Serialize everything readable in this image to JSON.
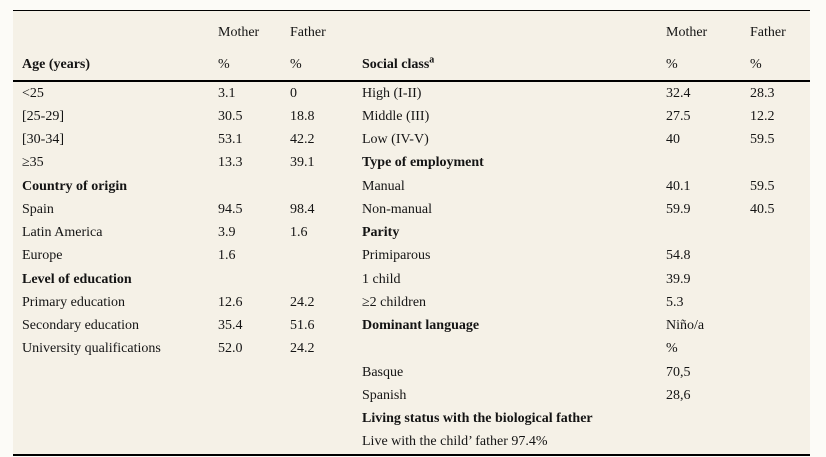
{
  "table": {
    "background_color": "#f5f1e7",
    "page_background": "#fcfbf7",
    "line_color": "#000000",
    "text_color": "#141414",
    "column_names": [
      "label-left",
      "mother-left",
      "father-left",
      "label-right",
      "mother-right",
      "father-right"
    ],
    "header": {
      "row1": [
        "",
        "Mother",
        "Father",
        "",
        "Mother",
        "Father"
      ],
      "age_label": "Age (years)",
      "percent": "%",
      "social_class_label": "Social class",
      "social_class_superscript": "a"
    },
    "rows": [
      {
        "cells": [
          "<25",
          "3.1",
          "0",
          "High (I-II)",
          "32.4",
          "28.3"
        ],
        "bold": []
      },
      {
        "cells": [
          "[25-29]",
          "30.5",
          "18.8",
          "Middle (III)",
          "27.5",
          "12.2"
        ],
        "bold": []
      },
      {
        "cells": [
          "[30-34]",
          "53.1",
          "42.2",
          "Low (IV-V)",
          "40",
          "59.5"
        ],
        "bold": []
      },
      {
        "cells": [
          "≥35",
          "13.3",
          "39.1",
          "Type of employment",
          "",
          ""
        ],
        "bold": [
          3
        ]
      },
      {
        "cells": [
          "Country of origin",
          "",
          "",
          "Manual",
          "40.1",
          "59.5"
        ],
        "bold": [
          0
        ]
      },
      {
        "cells": [
          "Spain",
          "94.5",
          "98.4",
          "Non-manual",
          "59.9",
          "40.5"
        ],
        "bold": []
      },
      {
        "cells": [
          "Latin America",
          "3.9",
          "1.6",
          "Parity",
          "",
          ""
        ],
        "bold": [
          3
        ]
      },
      {
        "cells": [
          "Europe",
          "1.6",
          "",
          "Primiparous",
          "54.8",
          ""
        ],
        "bold": []
      },
      {
        "cells": [
          "Level of education",
          "",
          "",
          "1 child",
          "39.9",
          ""
        ],
        "bold": [
          0
        ]
      },
      {
        "cells": [
          "Primary education",
          "12.6",
          "24.2",
          "≥2 children",
          "5.3",
          ""
        ],
        "bold": []
      },
      {
        "cells": [
          "Secondary education",
          "35.4",
          "51.6",
          "Dominant language",
          "Niño/a",
          ""
        ],
        "bold": [
          3
        ]
      },
      {
        "cells": [
          "University qualifications",
          "52.0",
          "24.2",
          "",
          "%",
          ""
        ],
        "bold": []
      },
      {
        "cells": [
          "",
          "",
          "",
          "Basque",
          "70,5",
          ""
        ],
        "bold": []
      },
      {
        "cells": [
          "",
          "",
          "",
          "Spanish",
          "28,6",
          ""
        ],
        "bold": []
      },
      {
        "cells": [
          "",
          "",
          "",
          "Living status with the biological father",
          "",
          ""
        ],
        "bold": [
          3
        ]
      },
      {
        "cells": [
          "",
          "",
          "",
          "Live with the child’ father 97.4%",
          "",
          ""
        ],
        "bold": []
      }
    ]
  }
}
